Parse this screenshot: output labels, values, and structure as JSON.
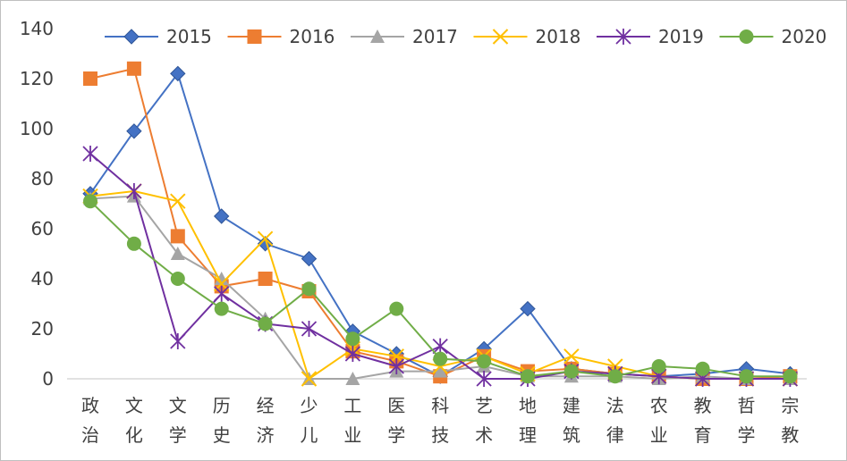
{
  "chart_data": {
    "type": "line",
    "title": "",
    "xlabel": "",
    "ylabel": "",
    "ylim": [
      0,
      140
    ],
    "yticks": [
      0,
      20,
      40,
      60,
      80,
      100,
      120,
      140
    ],
    "grid": false,
    "legend_position": "top",
    "categories": [
      [
        "政",
        "治"
      ],
      [
        "文",
        "化"
      ],
      [
        "文",
        "学"
      ],
      [
        "历",
        "史"
      ],
      [
        "经",
        "济"
      ],
      [
        "少",
        "儿"
      ],
      [
        "工",
        "业"
      ],
      [
        "医",
        "学"
      ],
      [
        "科",
        "技"
      ],
      [
        "艺",
        "术"
      ],
      [
        "地",
        "理"
      ],
      [
        "建",
        "筑"
      ],
      [
        "法",
        "律"
      ],
      [
        "农",
        "业"
      ],
      [
        "教",
        "育"
      ],
      [
        "哲",
        "学"
      ],
      [
        "宗",
        "教"
      ]
    ],
    "series": [
      {
        "name": "2015",
        "color": "#4472c4",
        "marker": "diamond",
        "values": [
          74,
          99,
          122,
          65,
          54,
          48,
          19,
          10,
          1,
          12,
          28,
          4,
          2,
          1,
          2,
          4,
          2
        ]
      },
      {
        "name": "2016",
        "color": "#ed7d31",
        "marker": "square",
        "values": [
          120,
          124,
          57,
          37,
          40,
          35,
          11,
          7,
          1,
          9,
          3,
          4,
          2,
          1,
          0,
          0,
          1
        ]
      },
      {
        "name": "2017",
        "color": "#a5a5a5",
        "marker": "triangle",
        "values": [
          72,
          73,
          50,
          40,
          24,
          0,
          0,
          3,
          3,
          5,
          1,
          1,
          1,
          0,
          1,
          0,
          0
        ]
      },
      {
        "name": "2018",
        "color": "#ffc000",
        "marker": "x",
        "values": [
          73,
          75,
          71,
          38,
          56,
          0,
          12,
          9,
          5,
          9,
          2,
          9,
          5,
          1,
          0,
          0,
          0
        ]
      },
      {
        "name": "2019",
        "color": "#7030a0",
        "marker": "star",
        "values": [
          90,
          75,
          15,
          34,
          22,
          20,
          10,
          5,
          13,
          0,
          0,
          3,
          2,
          1,
          0,
          0,
          0
        ]
      },
      {
        "name": "2020",
        "color": "#70ad47",
        "marker": "circle",
        "values": [
          71,
          54,
          40,
          28,
          22,
          36,
          16,
          28,
          8,
          7,
          1,
          3,
          1,
          5,
          4,
          1,
          1
        ]
      }
    ]
  }
}
